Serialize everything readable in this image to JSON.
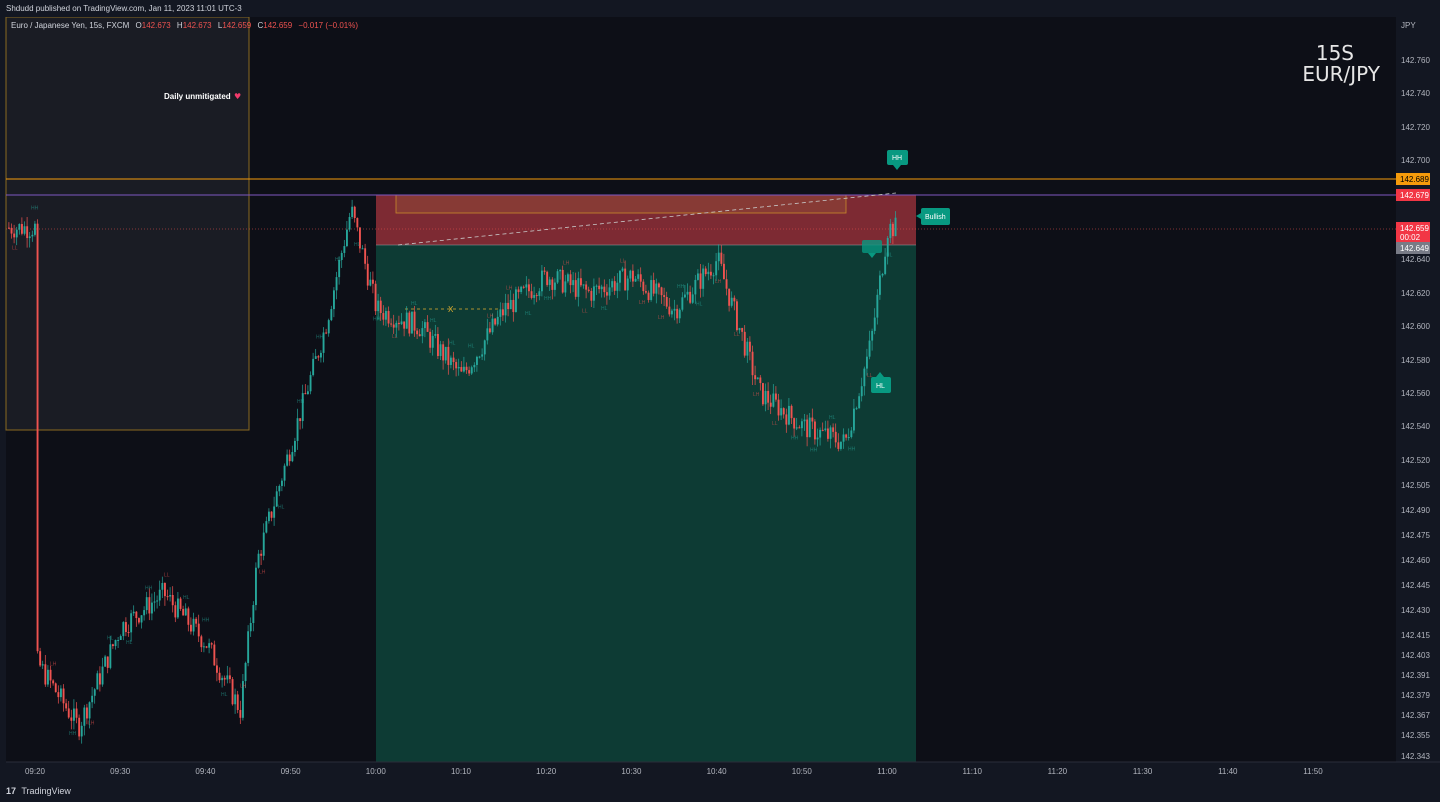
{
  "header": {
    "published": "Shdudd published on TradingView.com, Jan 11, 2023 11:01 UTC-3"
  },
  "legend": {
    "symbol": "Euro / Japanese Yen, 15s, FXCM",
    "o_label": "O",
    "o_value": "142.673",
    "h_label": "H",
    "h_value": "142.673",
    "l_label": "L",
    "l_value": "142.659",
    "c_label": "C",
    "c_value": "142.659",
    "change": "−0.017 (−0.01%)"
  },
  "watermark": {
    "interval": "15S",
    "pair": "EUR/JPY"
  },
  "currency": "JPY",
  "annotation": {
    "daily": "Daily unmitigated"
  },
  "price_labels": {
    "orange": "142.689",
    "red": "142.679",
    "last_price": "142.659",
    "countdown": "00:02",
    "gray": "142.649"
  },
  "markers": {
    "hh": "HH",
    "hl": "HL",
    "bullish": "Bullish"
  },
  "footer": {
    "brand": "TradingView"
  },
  "colors": {
    "background": "#131722",
    "up": "#26a69a",
    "down": "#ef5350",
    "orange": "#f59b0b",
    "red_zone": "#8b2a36",
    "green_zone": "#0e3a34",
    "teal_tag": "#089981"
  },
  "chart_data": {
    "type": "candlestick",
    "symbol": "EUR/JPY",
    "interval": "15s",
    "y_ticks": [
      "142.760",
      "142.740",
      "142.720",
      "142.700",
      "142.640",
      "142.620",
      "142.600",
      "142.580",
      "142.560",
      "142.540",
      "142.520",
      "142.505",
      "142.490",
      "142.475",
      "142.460",
      "142.445",
      "142.430",
      "142.415",
      "142.403",
      "142.391",
      "142.379",
      "142.367",
      "142.355",
      "142.343"
    ],
    "x_ticks": [
      "09:20",
      "09:30",
      "09:40",
      "09:50",
      "10:00",
      "10:10",
      "10:20",
      "10:30",
      "10:40",
      "10:50",
      "11:00",
      "11:10",
      "11:20",
      "11:30",
      "11:40",
      "11:50"
    ],
    "series": [
      {
        "t": "09:20",
        "close": 142.4
      },
      {
        "t": "09:25",
        "close": 142.36
      },
      {
        "t": "09:30",
        "close": 142.42
      },
      {
        "t": "09:35",
        "close": 142.44
      },
      {
        "t": "09:40",
        "close": 142.41
      },
      {
        "t": "09:44",
        "close": 142.37
      },
      {
        "t": "09:46",
        "close": 142.46
      },
      {
        "t": "09:50",
        "close": 142.53
      },
      {
        "t": "09:54",
        "close": 142.6
      },
      {
        "t": "09:57",
        "close": 142.67
      },
      {
        "t": "10:00",
        "close": 142.61
      },
      {
        "t": "10:05",
        "close": 142.6
      },
      {
        "t": "10:10",
        "close": 142.57
      },
      {
        "t": "10:15",
        "close": 142.61
      },
      {
        "t": "10:20",
        "close": 142.63
      },
      {
        "t": "10:25",
        "close": 142.62
      },
      {
        "t": "10:30",
        "close": 142.63
      },
      {
        "t": "10:35",
        "close": 142.61
      },
      {
        "t": "10:40",
        "close": 142.64
      },
      {
        "t": "10:45",
        "close": 142.56
      },
      {
        "t": "10:50",
        "close": 142.54
      },
      {
        "t": "10:55",
        "close": 142.53
      },
      {
        "t": "10:58",
        "close": 142.59
      },
      {
        "t": "11:00",
        "close": 142.659
      }
    ]
  }
}
